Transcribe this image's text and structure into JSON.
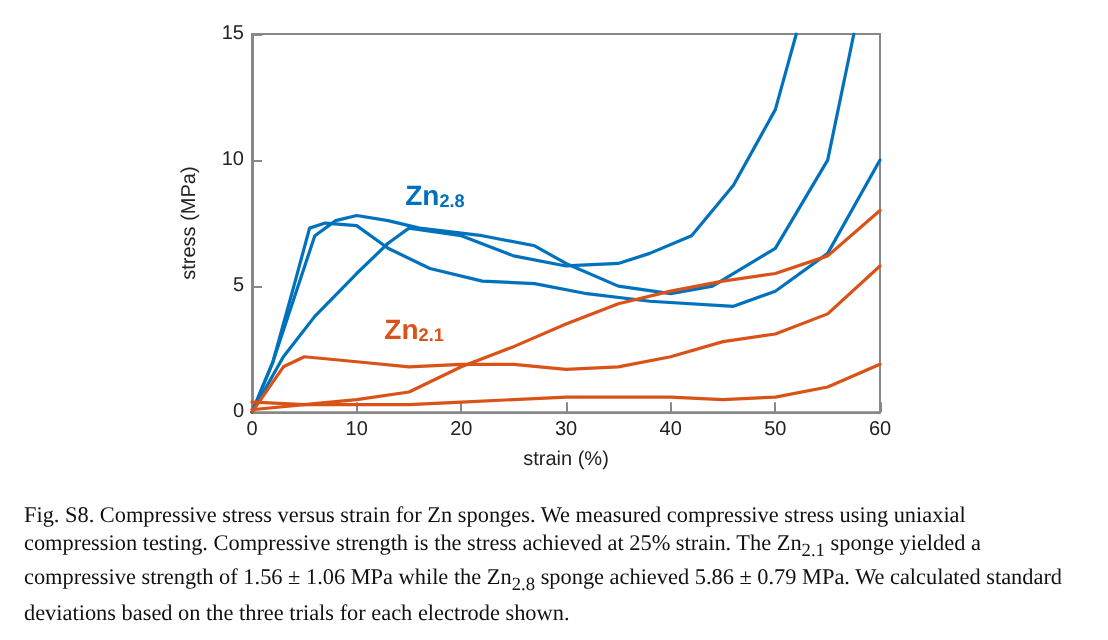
{
  "chart_data": {
    "type": "line",
    "xlabel": "strain (%)",
    "ylabel": "stress (MPa)",
    "xlim": [
      0,
      60
    ],
    "ylim": [
      0,
      15
    ],
    "xticks": [
      0,
      10,
      20,
      30,
      40,
      50,
      60
    ],
    "yticks": [
      0,
      5,
      10,
      15
    ],
    "grid": false,
    "legend": false,
    "marker": "none",
    "line_style": "solid",
    "series": [
      {
        "name": "Zn$_{2.8}$",
        "color": "#0072bd",
        "x": [
          0,
          2,
          4,
          5.5,
          7,
          10,
          13,
          17,
          22,
          27,
          32,
          38,
          46,
          50,
          55,
          60
        ],
        "values": [
          0,
          2,
          5,
          7.3,
          7.5,
          7.4,
          6.5,
          5.7,
          5.2,
          5.1,
          4.7,
          4.4,
          4.2,
          4.8,
          6.3,
          10
        ]
      },
      {
        "color": "#0072bd",
        "x": [
          0,
          2,
          4,
          6,
          8,
          10,
          13,
          16,
          22,
          27,
          30,
          35,
          40,
          44,
          50,
          55,
          57.5
        ],
        "values": [
          0,
          2,
          4.5,
          7,
          7.6,
          7.8,
          7.6,
          7.3,
          7,
          6.6,
          5.9,
          5,
          4.7,
          5,
          6.5,
          10,
          15
        ]
      },
      {
        "color": "#0072bd",
        "x": [
          0,
          3,
          6,
          10,
          13,
          15,
          20,
          25,
          30,
          35,
          38,
          42,
          46,
          50,
          52
        ],
        "values": [
          0,
          2.2,
          3.8,
          5.5,
          6.7,
          7.3,
          7,
          6.2,
          5.8,
          5.9,
          6.3,
          7,
          9,
          12,
          15
        ]
      },
      {
        "name": "Zn$_{2.1}$",
        "color": "#d95319",
        "x": [
          0,
          3,
          5,
          10,
          15,
          20,
          25,
          30,
          35,
          40,
          45,
          50,
          55,
          60
        ],
        "values": [
          0,
          1.8,
          2.2,
          2,
          1.8,
          1.9,
          1.9,
          1.7,
          1.8,
          2.2,
          2.8,
          3.1,
          3.9,
          5.8
        ]
      },
      {
        "color": "#d95319",
        "x": [
          0,
          5,
          10,
          15,
          20,
          25,
          30,
          35,
          40,
          45,
          50,
          55,
          60
        ],
        "values": [
          0.4,
          0.3,
          0.5,
          0.8,
          1.8,
          2.6,
          3.5,
          4.3,
          4.8,
          5.2,
          5.5,
          6.2,
          8
        ]
      },
      {
        "color": "#d95319",
        "x": [
          0,
          5,
          10,
          15,
          20,
          25,
          30,
          35,
          40,
          45,
          50,
          55,
          60
        ],
        "values": [
          0.1,
          0.3,
          0.3,
          0.3,
          0.4,
          0.5,
          0.6,
          0.6,
          0.6,
          0.5,
          0.6,
          1,
          1.9
        ]
      }
    ],
    "annotations": [
      "Fig. S8.  Compressive stress versus strain for Zn sponges. We measured compressive stress using uniaxial compression testing. Compressive strength is the stress achieved at 25% strain. The Zn$_{2.1}$ sponge yielded a compressive strength of 1.56 ± 1.06 MPa while the Zn$_{2.8}$ sponge achieved 5.86 ± 0.79 MPa. We calculated standard deviations based on the three trials for each electrode shown."
    ]
  }
}
